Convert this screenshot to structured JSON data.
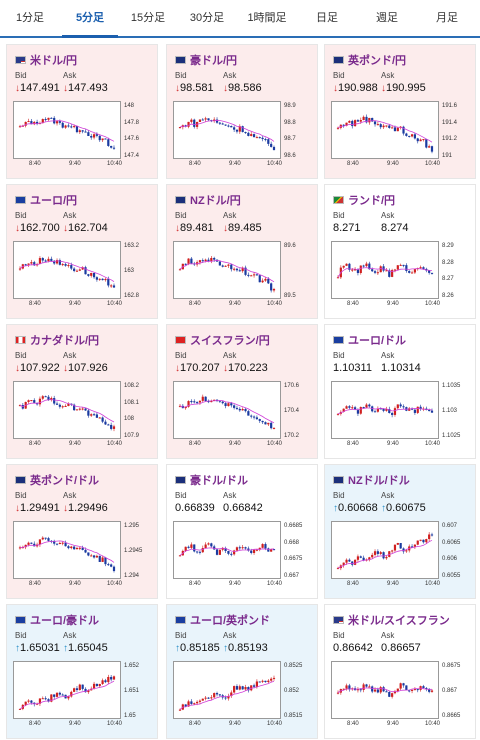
{
  "tabs": [
    {
      "label": "1分足",
      "active": false
    },
    {
      "label": "5分足",
      "active": true
    },
    {
      "label": "15分足",
      "active": false
    },
    {
      "label": "30分足",
      "active": false
    },
    {
      "label": "1時間足",
      "active": false
    },
    {
      "label": "日足",
      "active": false
    },
    {
      "label": "週足",
      "active": false
    },
    {
      "label": "月足",
      "active": false
    }
  ],
  "bid_label": "Bid",
  "ask_label": "Ask",
  "cards": [
    {
      "pair": "米ドル/円",
      "trend": "down",
      "bid": "147.491",
      "ask": "147.493",
      "flag": "us",
      "yticks": [
        "148",
        "147.8",
        "147.6",
        "147.4"
      ],
      "xticks": [
        "8:40",
        "9:40",
        "10:40"
      ]
    },
    {
      "pair": "豪ドル/円",
      "trend": "down",
      "bid": "98.581",
      "ask": "98.586",
      "flag": "au",
      "yticks": [
        "98.9",
        "98.8",
        "98.7",
        "98.6"
      ],
      "xticks": [
        "8:40",
        "9:40",
        "10:40"
      ]
    },
    {
      "pair": "英ポンド/円",
      "trend": "down",
      "bid": "190.988",
      "ask": "190.995",
      "flag": "gb",
      "yticks": [
        "191.6",
        "191.4",
        "191.2",
        "191"
      ],
      "xticks": [
        "8:40",
        "9:40",
        "10:40"
      ]
    },
    {
      "pair": "ユーロ/円",
      "trend": "down",
      "bid": "162.700",
      "ask": "162.704",
      "flag": "eu",
      "yticks": [
        "163.2",
        "163",
        "162.8"
      ],
      "xticks": [
        "8:40",
        "9:40",
        "10:40"
      ]
    },
    {
      "pair": "NZドル/円",
      "trend": "down",
      "bid": "89.481",
      "ask": "89.485",
      "flag": "nz",
      "yticks": [
        "89.6",
        "89.5"
      ],
      "xticks": [
        "8:40",
        "9:40",
        "10:40"
      ]
    },
    {
      "pair": "ランド/円",
      "trend": "flat",
      "bid": "8.271",
      "ask": "8.274",
      "flag": "za",
      "yticks": [
        "8.29",
        "8.28",
        "8.27",
        "8.26"
      ],
      "xticks": [
        "8:40",
        "9:40",
        "10:40"
      ]
    },
    {
      "pair": "カナダドル/円",
      "trend": "down",
      "bid": "107.922",
      "ask": "107.926",
      "flag": "ca",
      "yticks": [
        "108.2",
        "108.1",
        "108",
        "107.9"
      ],
      "xticks": [
        "8:40",
        "9:40",
        "10:40"
      ]
    },
    {
      "pair": "スイスフラン/円",
      "trend": "down",
      "bid": "170.207",
      "ask": "170.223",
      "flag": "ch",
      "yticks": [
        "170.6",
        "170.4",
        "170.2"
      ],
      "xticks": [
        "8:40",
        "9:40",
        "10:40"
      ]
    },
    {
      "pair": "ユーロ/ドル",
      "trend": "flat",
      "bid": "1.10311",
      "ask": "1.10314",
      "flag": "eu",
      "yticks": [
        "1.1035",
        "1.103",
        "1.1025"
      ],
      "xticks": [
        "8:40",
        "9:40",
        "10:40"
      ]
    },
    {
      "pair": "英ポンド/ドル",
      "trend": "down",
      "bid": "1.29491",
      "ask": "1.29496",
      "flag": "gb",
      "yticks": [
        "1.295",
        "1.2945",
        "1.294"
      ],
      "xticks": [
        "8:40",
        "9:40",
        "10:40"
      ]
    },
    {
      "pair": "豪ドル/ドル",
      "trend": "flat",
      "bid": "0.66839",
      "ask": "0.66842",
      "flag": "au",
      "yticks": [
        "0.6685",
        "0.668",
        "0.6675",
        "0.667"
      ],
      "xticks": [
        "8:40",
        "9:40",
        "10:40"
      ]
    },
    {
      "pair": "NZドル/ドル",
      "trend": "up",
      "bid": "0.60668",
      "ask": "0.60675",
      "flag": "nz",
      "yticks": [
        "0.607",
        "0.6065",
        "0.606",
        "0.6055"
      ],
      "xticks": [
        "8:40",
        "9:40",
        "10:40"
      ]
    },
    {
      "pair": "ユーロ/豪ドル",
      "trend": "up",
      "bid": "1.65031",
      "ask": "1.65045",
      "flag": "eu",
      "yticks": [
        "1.652",
        "1.651",
        "1.65"
      ],
      "xticks": [
        "8:40",
        "9:40",
        "10:40"
      ]
    },
    {
      "pair": "ユーロ/英ポンド",
      "trend": "up",
      "bid": "0.85185",
      "ask": "0.85193",
      "flag": "eu",
      "yticks": [
        "0.8525",
        "0.852",
        "0.8515"
      ],
      "xticks": [
        "8:40",
        "9:40",
        "10:40"
      ]
    },
    {
      "pair": "米ドル/スイスフラン",
      "trend": "flat",
      "bid": "0.86642",
      "ask": "0.86657",
      "flag": "us",
      "yticks": [
        "0.8675",
        "0.867",
        "0.8665"
      ],
      "xticks": [
        "8:40",
        "9:40",
        "10:40"
      ]
    }
  ],
  "colors": {
    "up_arrow": "#2a8fc8",
    "down_arrow": "#d03030",
    "candle_up": "#d02020",
    "candle_down": "#1a3aa0",
    "ma_line": "#d040d8",
    "tab_active": "#1b5fae",
    "title": "#7a2a8c"
  }
}
